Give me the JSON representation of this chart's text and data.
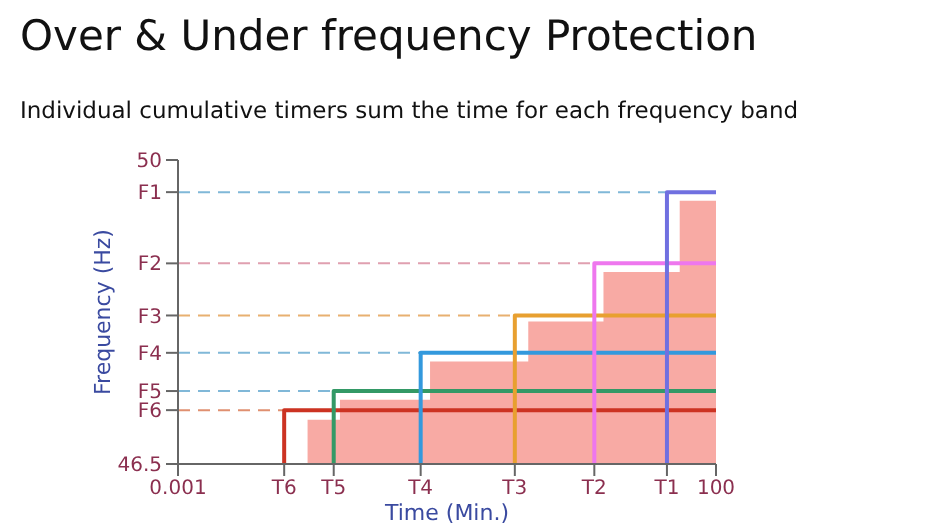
{
  "chart_data": {
    "type": "line",
    "title": "Over & Under frequency Protection",
    "subtitle": "Individual cumulative timers sum the time for each frequency band",
    "xlabel": "Time (Min.)",
    "ylabel": "Frequency (Hz)",
    "log": "x",
    "xlim": [
      0.001,
      100
    ],
    "ylim": [
      46.5,
      50
    ],
    "xticks": [
      0.001,
      {
        "value": 0.0097,
        "label": "T6"
      },
      {
        "value": 0.028,
        "label": "T5"
      },
      {
        "value": 0.18,
        "label": "T4"
      },
      {
        "value": 1.35,
        "label": "T3"
      },
      {
        "value": 7.4,
        "label": "T2"
      },
      {
        "value": 35,
        "label": "T1"
      },
      100
    ],
    "yticks": [
      46.5,
      {
        "value": 47.12,
        "label": "F6"
      },
      {
        "value": 47.34,
        "label": "F5"
      },
      {
        "value": 47.78,
        "label": "F4"
      },
      {
        "value": 48.21,
        "label": "F3"
      },
      {
        "value": 48.81,
        "label": "F2"
      },
      {
        "value": 49.63,
        "label": "F1"
      },
      50
    ],
    "grid": false,
    "line_style": "solid",
    "marker": "none",
    "ref_lines": [
      {
        "axis": "y",
        "value": 49.63,
        "color": "#80b8d8",
        "line_style": "dashed"
      },
      {
        "axis": "y",
        "value": 48.81,
        "color": "#e0a0b0",
        "line_style": "dashed"
      },
      {
        "axis": "y",
        "value": 48.21,
        "color": "#e8b070",
        "line_style": "dashed"
      },
      {
        "axis": "y",
        "value": 47.78,
        "color": "#80b8d8",
        "line_style": "dashed"
      },
      {
        "axis": "y",
        "value": 47.34,
        "color": "#80b8d8",
        "line_style": "dashed"
      },
      {
        "axis": "y",
        "value": 47.12,
        "color": "#e09070",
        "line_style": "dashed"
      }
    ],
    "series": [
      {
        "type": "area",
        "color": "#f8aaa4",
        "x": [
          0.016,
          0.032,
          0.22,
          1.8,
          9,
          46,
          100
        ],
        "values": [
          47.01,
          47.24,
          47.68,
          48.14,
          48.71,
          49.53,
          49.53
        ]
      },
      {
        "color": "#cc3322",
        "x": [
          0.0097,
          0.0097,
          100
        ],
        "values": [
          46.5,
          47.12,
          47.12
        ]
      },
      {
        "color": "#339966",
        "x": [
          0.028,
          0.028,
          100
        ],
        "values": [
          46.5,
          47.34,
          47.34
        ]
      },
      {
        "color": "#3399dd",
        "x": [
          0.18,
          0.18,
          100
        ],
        "values": [
          46.5,
          47.78,
          47.78
        ]
      },
      {
        "color": "#e8a030",
        "x": [
          1.35,
          1.35,
          100
        ],
        "values": [
          46.5,
          48.21,
          48.21
        ]
      },
      {
        "color": "#ee77ee",
        "x": [
          7.4,
          7.4,
          100
        ],
        "values": [
          46.5,
          48.81,
          48.81
        ]
      },
      {
        "color": "#7070e0",
        "x": [
          35,
          35,
          100
        ],
        "values": [
          46.5,
          49.63,
          49.63
        ]
      }
    ]
  }
}
